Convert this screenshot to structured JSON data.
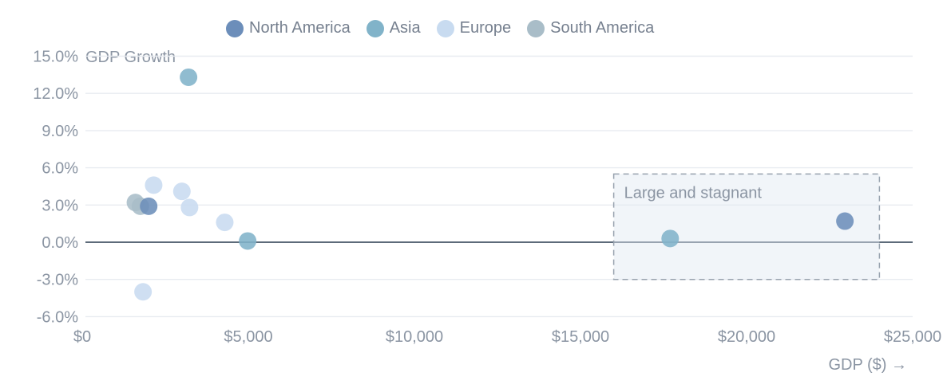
{
  "legend": {
    "items": [
      {
        "label": "North America",
        "color": "#6c8eba"
      },
      {
        "label": "Asia",
        "color": "#81b3c9"
      },
      {
        "label": "Europe",
        "color": "#c8dbf0"
      },
      {
        "label": "South America",
        "color": "#a9bdc8"
      }
    ]
  },
  "axes": {
    "y_title": "GDP Growth",
    "x_title": "GDP ($) →",
    "y_ticks": [
      {
        "value": 15,
        "label": "15.0%"
      },
      {
        "value": 12,
        "label": "12.0%"
      },
      {
        "value": 9,
        "label": "9.0%"
      },
      {
        "value": 6,
        "label": "6.0%"
      },
      {
        "value": 3,
        "label": "3.0%"
      },
      {
        "value": 0,
        "label": "0.0%"
      },
      {
        "value": -3,
        "label": "-3.0%"
      },
      {
        "value": -6,
        "label": "-6.0%"
      }
    ],
    "x_ticks": [
      {
        "value": 0,
        "label": "$0"
      },
      {
        "value": 5000,
        "label": "$5,000"
      },
      {
        "value": 10000,
        "label": "$10,000"
      },
      {
        "value": 15000,
        "label": "$15,000"
      },
      {
        "value": 20000,
        "label": "$20,000"
      },
      {
        "value": 25000,
        "label": "$25,000"
      }
    ]
  },
  "annotation": {
    "label": "Large and stagnant",
    "x_range_dollars": [
      16000,
      24000
    ],
    "y_range_pct": [
      -3,
      5.5
    ],
    "border_color": "#97a2ae",
    "fill_color": "rgba(223,233,242,0.45)"
  },
  "chart_data": {
    "type": "scatter",
    "title": "",
    "xlabel": "GDP ($)",
    "ylabel": "GDP Growth",
    "xlim": [
      0,
      25000
    ],
    "ylim": [
      -6,
      15
    ],
    "grid": true,
    "legend_position": "top",
    "series": [
      {
        "name": "North America",
        "color": "#6c8eba",
        "points": [
          [
            2000,
            2.9
          ],
          [
            22960,
            1.7
          ]
        ]
      },
      {
        "name": "Asia",
        "color": "#81b3c9",
        "points": [
          [
            3200,
            13.3
          ],
          [
            4980,
            0.1
          ],
          [
            17700,
            0.3
          ]
        ]
      },
      {
        "name": "Europe",
        "color": "#c8dbf0",
        "points": [
          [
            2150,
            4.6
          ],
          [
            3000,
            4.1
          ],
          [
            3230,
            2.8
          ],
          [
            4290,
            1.6
          ],
          [
            1830,
            -4.0
          ]
        ]
      },
      {
        "name": "South America",
        "color": "#a9bdc8",
        "points": [
          [
            1600,
            3.2
          ],
          [
            1750,
            2.9
          ]
        ]
      }
    ],
    "colors": {
      "gridline": "#e8ebf0",
      "zero_line": "#5d6b7a",
      "tick_text": "#8b95a3"
    }
  }
}
